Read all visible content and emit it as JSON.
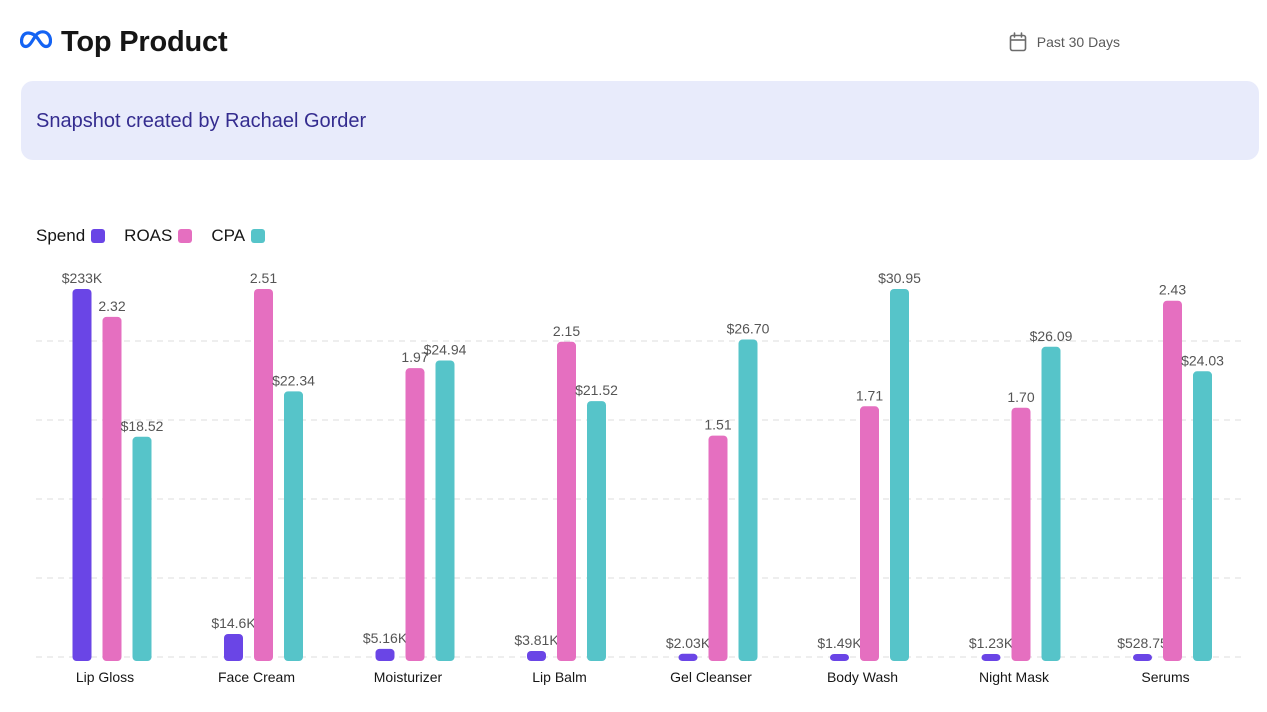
{
  "header": {
    "title": "Top Product",
    "date_range": "Past 30 Days",
    "logo_icon": "meta-infinity-logo",
    "calendar_icon": "calendar-icon"
  },
  "banner": {
    "text": "Snapshot created by Rachael Gorder"
  },
  "colors": {
    "spend": "#6a45e6",
    "roas": "#e56fc0",
    "cpa": "#56c4c9",
    "banner_bg": "#e8ebfb",
    "banner_text": "#342c8f",
    "brand_blue": "#1463f3"
  },
  "chart_data": {
    "type": "bar",
    "title": "Top Product",
    "xlabel": "",
    "ylabel": "",
    "grid": true,
    "legend_position": "top-left",
    "categories": [
      "Lip Gloss",
      "Face Cream",
      "Moisturizer",
      "Lip Balm",
      "Gel Cleanser",
      "Body Wash",
      "Night Mask",
      "Serums"
    ],
    "series": [
      {
        "name": "Spend",
        "color": "#6a45e6",
        "values": [
          233000,
          14600,
          5160,
          3810,
          2030,
          1490,
          1230,
          528.75
        ],
        "labels": [
          "$233K",
          "$14.6K",
          "$5.16K",
          "$3.81K",
          "$2.03K",
          "$1.49K",
          "$1.23K",
          "$528.75"
        ],
        "ylim": [
          0,
          233000
        ]
      },
      {
        "name": "ROAS",
        "color": "#e56fc0",
        "values": [
          2.32,
          2.51,
          1.97,
          2.15,
          1.51,
          1.71,
          1.7,
          2.43
        ],
        "labels": [
          "2.32",
          "2.51",
          "1.97",
          "2.15",
          "1.51",
          "1.71",
          "1.70",
          "2.43"
        ],
        "ylim": [
          0,
          2.51
        ]
      },
      {
        "name": "CPA",
        "color": "#56c4c9",
        "values": [
          18.52,
          22.34,
          24.94,
          21.52,
          26.7,
          30.95,
          26.09,
          24.03
        ],
        "labels": [
          "$18.52",
          "$22.34",
          "$24.94",
          "$21.52",
          "$26.70",
          "$30.95",
          "$26.09",
          "$24.03"
        ],
        "ylim": [
          0,
          30.95
        ]
      }
    ]
  }
}
